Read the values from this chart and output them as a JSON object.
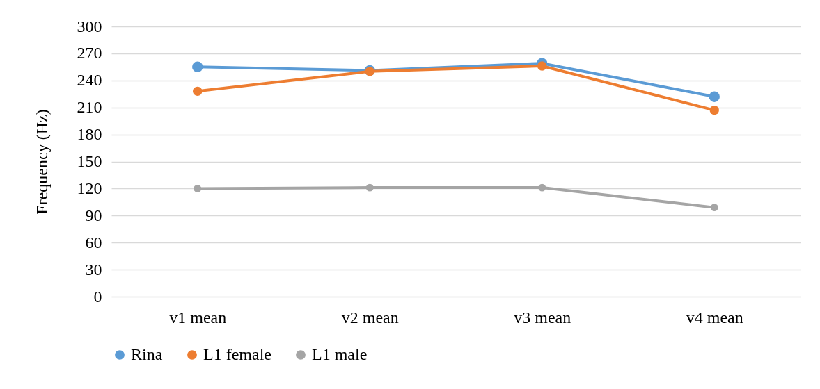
{
  "chart_data": {
    "type": "line",
    "ylabel": "Frequency (Hz)",
    "categories": [
      "v1 mean",
      "v2 mean",
      "v3 mean",
      "v4 mean"
    ],
    "series": [
      {
        "name": "Rina",
        "color": "#5b9bd5",
        "values": [
          255,
          251,
          259,
          222
        ]
      },
      {
        "name": "L1 female",
        "color": "#ed7d31",
        "values": [
          228,
          250,
          256,
          207
        ]
      },
      {
        "name": "L1 male",
        "color": "#a5a5a5",
        "values": [
          120,
          121,
          121,
          99
        ]
      }
    ],
    "ylim": [
      0,
      300
    ],
    "yticks": [
      0,
      30,
      60,
      90,
      120,
      150,
      180,
      210,
      240,
      270,
      300
    ],
    "grid": "y",
    "legend": "bottom",
    "marker": "circle",
    "line_style": "solid"
  }
}
